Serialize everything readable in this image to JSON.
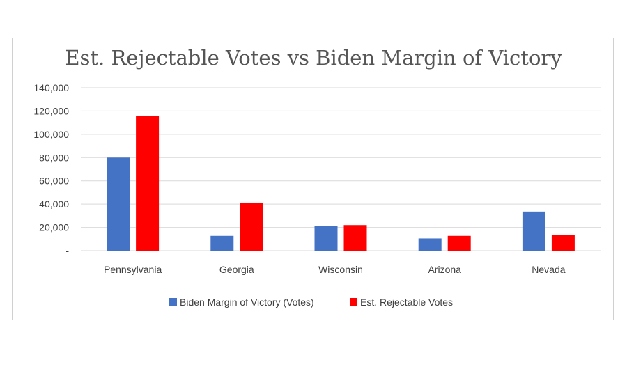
{
  "chart_data": {
    "type": "bar",
    "title": "Est. Rejectable Votes vs Biden Margin of Victory",
    "categories": [
      "Pennsylvania",
      "Georgia",
      "Wisconsin",
      "Arizona",
      "Nevada"
    ],
    "series": [
      {
        "name": "Biden Margin of Victory (Votes)",
        "color": "#4472C4",
        "values": [
          80000,
          12700,
          21000,
          10500,
          33600
        ]
      },
      {
        "name": "Est. Rejectable Votes",
        "color": "#FF0000",
        "values": [
          115600,
          41300,
          22000,
          12700,
          13300
        ]
      }
    ],
    "y_ticks": [
      "-",
      "20,000",
      "40,000",
      "60,000",
      "80,000",
      "100,000",
      "120,000",
      "140,000"
    ],
    "ylim": [
      0,
      140000
    ],
    "grid": true,
    "legend_position": "bottom",
    "xlabel": "",
    "ylabel": ""
  }
}
